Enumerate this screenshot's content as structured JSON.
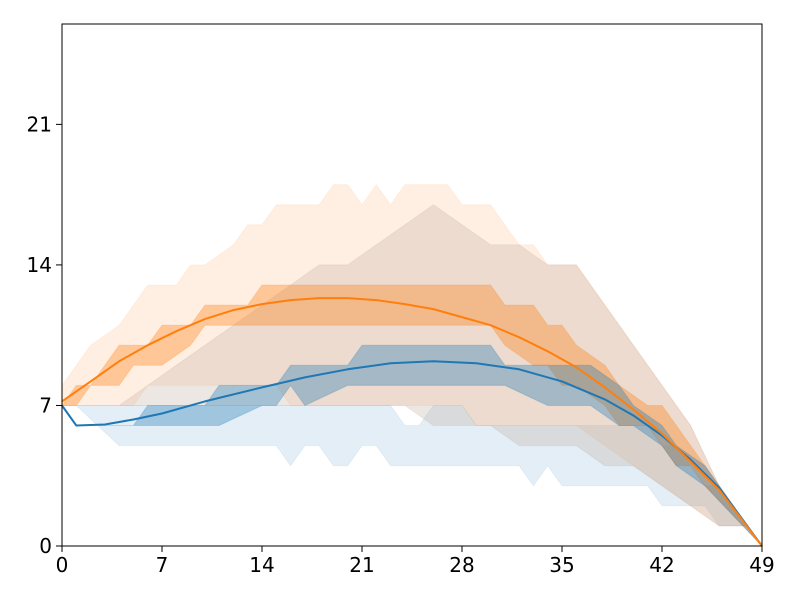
{
  "chart_data": {
    "type": "line",
    "title": "",
    "xlabel": "",
    "ylabel": "",
    "xlim": [
      0,
      49
    ],
    "ylim": [
      0,
      26
    ],
    "xticks": [
      "0",
      "7",
      "14",
      "21",
      "28",
      "35",
      "42",
      "49"
    ],
    "yticks": [
      "0",
      "7",
      "14",
      "21"
    ],
    "legend": "none",
    "grid": false,
    "series": [
      {
        "name": "blue",
        "color": "#1f77b4",
        "x": [
          0,
          1,
          3,
          5,
          7,
          10,
          14,
          17,
          20,
          23,
          26,
          29,
          32,
          35,
          38,
          40,
          42,
          44,
          46,
          49
        ],
        "mean": [
          7.0,
          6.0,
          6.05,
          6.3,
          6.6,
          7.2,
          7.9,
          8.4,
          8.8,
          9.1,
          9.2,
          9.1,
          8.8,
          8.2,
          7.3,
          6.5,
          5.5,
          4.3,
          2.9,
          0.0
        ],
        "inner_band": {
          "x": [
            0,
            1,
            4,
            5,
            6,
            10,
            11,
            14,
            15,
            16,
            17,
            20,
            21,
            30,
            31,
            34,
            36,
            37,
            39,
            40,
            42,
            43,
            45,
            49
          ],
          "lower": [
            7,
            6,
            6,
            6,
            6,
            6,
            6,
            7,
            7,
            8,
            7,
            8,
            8,
            8,
            8,
            7,
            7,
            7,
            6,
            6,
            5,
            4,
            3,
            0
          ],
          "upper": [
            7,
            6,
            6,
            6,
            7,
            7,
            8,
            8,
            8,
            9,
            9,
            9,
            10,
            10,
            9,
            9,
            9,
            9,
            8,
            7,
            6,
            5,
            4,
            0
          ]
        },
        "outer_band": {
          "x": [
            0,
            1,
            4,
            5,
            6,
            10,
            11,
            14,
            15,
            16,
            17,
            18,
            19,
            20,
            21,
            22,
            23,
            24,
            25,
            26,
            27,
            28,
            29,
            30,
            31,
            32,
            33,
            34,
            35,
            36,
            37,
            38,
            39,
            40,
            41,
            42,
            43,
            44,
            45,
            46,
            47,
            48,
            49
          ],
          "lower": [
            7,
            7,
            5,
            5,
            5,
            5,
            5,
            5,
            5,
            4,
            5,
            5,
            4,
            4,
            5,
            5,
            4,
            4,
            4,
            4,
            4,
            4,
            4,
            4,
            4,
            4,
            3,
            4,
            3,
            3,
            3,
            3,
            3,
            3,
            3,
            2,
            2,
            2,
            2,
            1,
            1,
            1,
            0
          ],
          "upper": [
            7,
            7,
            7,
            7,
            7,
            7,
            7,
            7,
            7,
            7,
            7,
            7,
            7,
            7,
            7,
            7,
            7,
            6,
            6,
            7,
            7,
            7,
            6,
            6,
            6,
            6,
            6,
            6,
            6,
            6,
            6,
            6,
            6,
            6,
            6,
            5,
            5,
            4,
            3,
            3,
            2,
            1,
            0
          ]
        }
      },
      {
        "name": "orange",
        "color": "#ff7f0e",
        "x": [
          0,
          2,
          4,
          6,
          8,
          10,
          12,
          14,
          16,
          18,
          20,
          22,
          24,
          26,
          28,
          30,
          32,
          34,
          36,
          38,
          40,
          42,
          44,
          46,
          49
        ],
        "mean": [
          7.2,
          8.2,
          9.2,
          10.0,
          10.7,
          11.3,
          11.75,
          12.05,
          12.25,
          12.35,
          12.35,
          12.25,
          12.05,
          11.8,
          11.4,
          11.0,
          10.4,
          9.7,
          8.9,
          7.9,
          6.8,
          5.6,
          4.2,
          2.8,
          0.0
        ],
        "inner_band": {
          "x": [
            0,
            1,
            2,
            3,
            4,
            5,
            6,
            7,
            9,
            10,
            13,
            14,
            15,
            16,
            17,
            18,
            19,
            30,
            31,
            33,
            34,
            35,
            36,
            38,
            39,
            41,
            42,
            43,
            44,
            45,
            49
          ],
          "lower": [
            7,
            7,
            8,
            8,
            8,
            9,
            9,
            9,
            10,
            11,
            11,
            11,
            11,
            11,
            11,
            11,
            11,
            11,
            10,
            9,
            9,
            8,
            8,
            7,
            6,
            6,
            5,
            4,
            4,
            3,
            0
          ],
          "upper": [
            7,
            8,
            8,
            9,
            10,
            10,
            10,
            11,
            11,
            12,
            12,
            13,
            13,
            13,
            13,
            13,
            13,
            13,
            12,
            12,
            11,
            11,
            10,
            9,
            8,
            7,
            7,
            6,
            5,
            4,
            0
          ]
        },
        "outer_band": {
          "x": [
            0,
            2,
            4,
            5,
            6,
            8,
            9,
            10,
            12,
            13,
            14,
            15,
            16,
            17,
            18,
            19,
            20,
            21,
            22,
            23,
            24,
            25,
            26,
            27,
            28,
            29,
            30,
            31,
            32,
            33,
            34,
            35,
            36,
            38,
            40,
            42,
            44,
            46,
            48,
            49
          ],
          "lower": [
            7,
            7,
            7,
            7,
            8,
            8,
            8,
            8,
            8,
            8,
            8,
            8,
            7,
            7,
            7,
            7,
            7,
            7,
            7,
            7,
            7,
            7,
            7,
            7,
            7,
            6,
            6,
            6,
            6,
            6,
            6,
            6,
            6,
            5,
            4,
            3,
            2,
            1,
            1,
            0
          ],
          "upper": [
            8,
            10,
            11,
            12,
            13,
            13,
            14,
            14,
            15,
            16,
            16,
            17,
            17,
            17,
            17,
            18,
            18,
            17,
            18,
            17,
            18,
            18,
            18,
            18,
            17,
            17,
            17,
            16,
            15,
            15,
            14,
            14,
            14,
            12,
            10,
            8,
            6,
            3,
            1,
            0
          ]
        }
      }
    ],
    "gray_band": {
      "color": "#b9a89a",
      "x": [
        0,
        2,
        4,
        6,
        8,
        10,
        12,
        14,
        16,
        18,
        20,
        22,
        24,
        26,
        28,
        30,
        32,
        34,
        36,
        38,
        40,
        42,
        44,
        46,
        48,
        49
      ],
      "lower": [
        7,
        7,
        7,
        7,
        7,
        7,
        7,
        7,
        7,
        7,
        7,
        7,
        7,
        6,
        6,
        6,
        5,
        5,
        5,
        4,
        4,
        3,
        2,
        1,
        1,
        0
      ],
      "upper": [
        7,
        7,
        7,
        8,
        9,
        10,
        11,
        12,
        13,
        14,
        14,
        15,
        16,
        17,
        16,
        15,
        15,
        14,
        14,
        12,
        10,
        8,
        6,
        3,
        1,
        0
      ]
    }
  }
}
